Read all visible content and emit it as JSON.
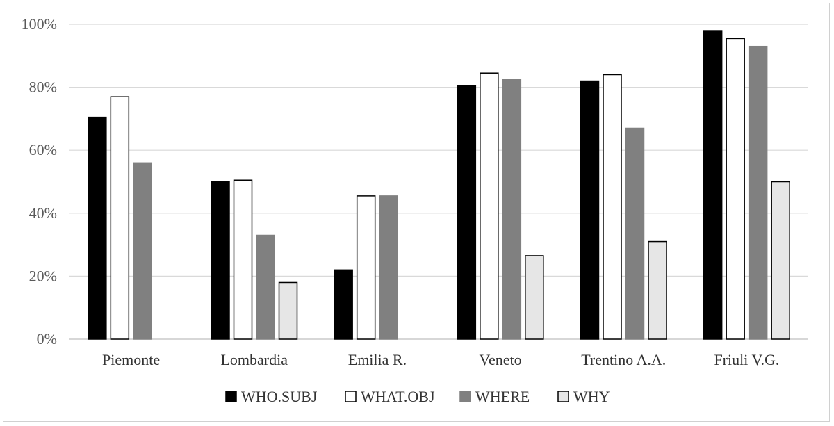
{
  "chart_data": {
    "type": "bar",
    "title": "",
    "xlabel": "",
    "ylabel": "",
    "ylim": [
      0,
      100
    ],
    "y_ticks": [
      "0%",
      "20%",
      "40%",
      "60%",
      "80%",
      "100%"
    ],
    "y_tick_values": [
      0,
      20,
      40,
      60,
      80,
      100
    ],
    "grid": true,
    "legend_position": "bottom",
    "categories": [
      "Piemonte",
      "Lombardia",
      "Emilia R.",
      "Veneto",
      "Trentino A.A.",
      "Friuli V.G."
    ],
    "series": [
      {
        "name": "WHO.SUBJ",
        "color": "#000000",
        "stroke": "#000000",
        "values": [
          70.5,
          50,
          22,
          80.5,
          82,
          98
        ]
      },
      {
        "name": "WHAT.OBJ",
        "color": "#ffffff",
        "stroke": "#000000",
        "values": [
          77,
          50.5,
          45.5,
          84.5,
          84,
          95.5
        ]
      },
      {
        "name": "WHERE",
        "color": "#808080",
        "stroke": "#808080",
        "values": [
          56,
          33,
          45.5,
          82.5,
          67,
          93
        ]
      },
      {
        "name": "WHY",
        "color": "#e6e6e6",
        "stroke": "#000000",
        "values": [
          0,
          18,
          0,
          26.5,
          31,
          50
        ]
      }
    ]
  }
}
